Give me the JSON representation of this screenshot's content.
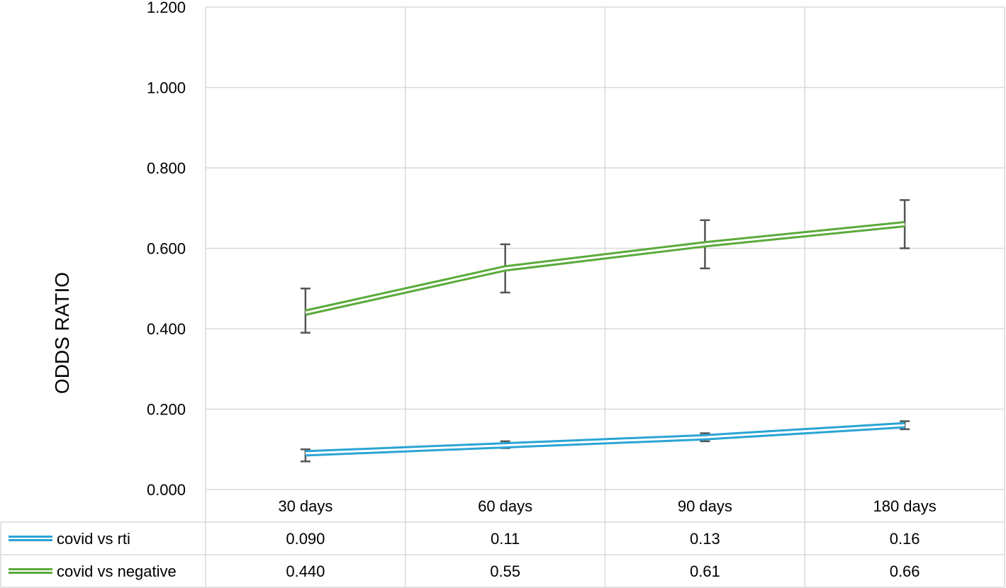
{
  "chart_data": {
    "type": "line",
    "ylabel": "ODDS RATIO",
    "ylim": [
      0,
      1.2
    ],
    "yticks": [
      "0.000",
      "0.200",
      "0.400",
      "0.600",
      "0.800",
      "1.000",
      "1.200"
    ],
    "categories": [
      "30 days",
      "60 days",
      "90 days",
      "180 days"
    ],
    "grid": true,
    "legend": "data-table",
    "series": [
      {
        "name": "covid vs rti",
        "color": "#2aa4d4",
        "values": [
          0.09,
          0.11,
          0.13,
          0.16
        ],
        "labels": [
          "0.090",
          "0.11",
          "0.13",
          "0.16"
        ],
        "ci_low": [
          0.07,
          0.103,
          0.12,
          0.15
        ],
        "ci_high": [
          0.1,
          0.12,
          0.14,
          0.17
        ]
      },
      {
        "name": "covid vs negative",
        "color": "#5aaa3a",
        "values": [
          0.44,
          0.55,
          0.61,
          0.66
        ],
        "labels": [
          "0.440",
          "0.55",
          "0.61",
          "0.66"
        ],
        "ci_low": [
          0.39,
          0.49,
          0.55,
          0.6
        ],
        "ci_high": [
          0.5,
          0.61,
          0.67,
          0.72
        ]
      }
    ]
  }
}
